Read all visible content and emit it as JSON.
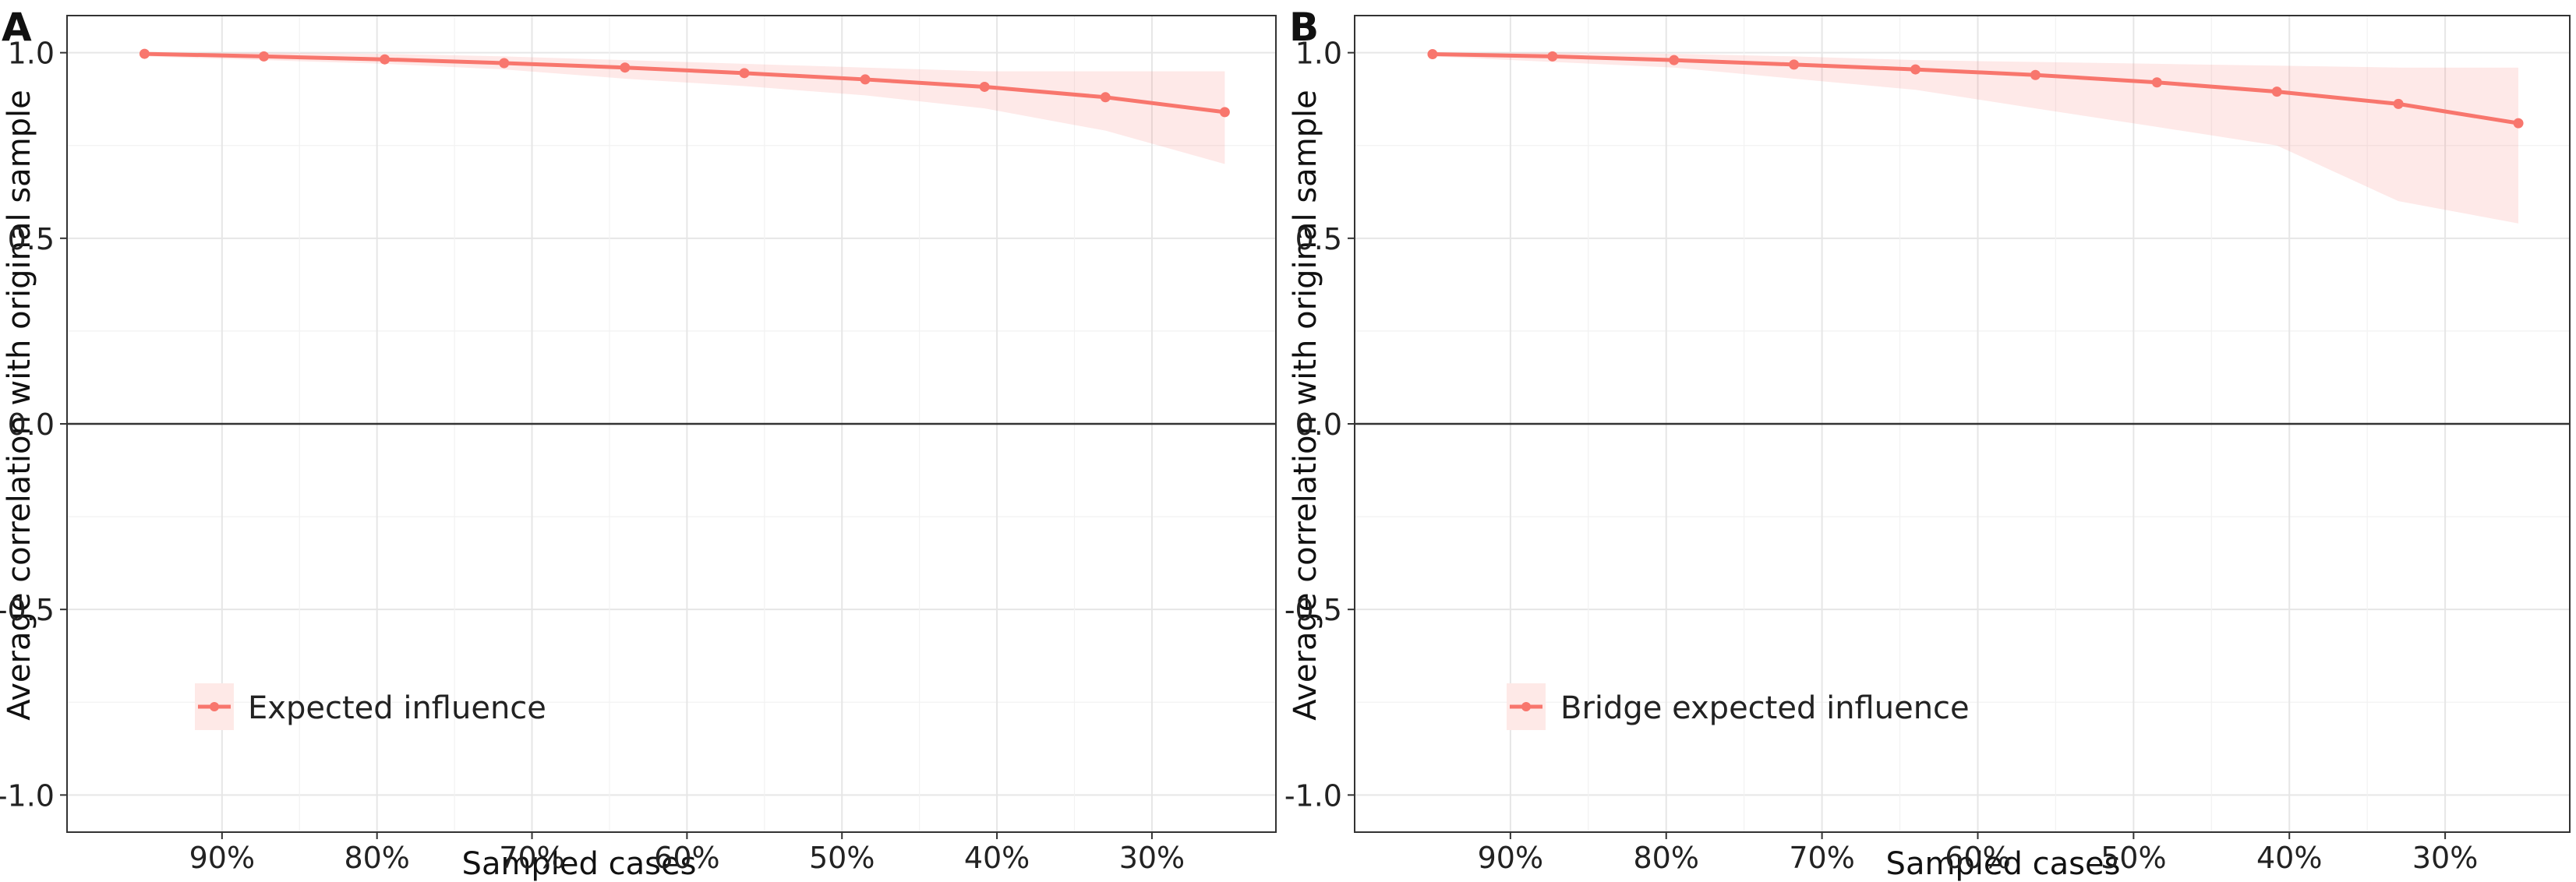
{
  "chart_data": [
    {
      "type": "line",
      "panel_label": "A",
      "xlabel": "Sampled cases",
      "ylabel": "Average correlation with original sample",
      "ylim": [
        -1.1,
        1.1
      ],
      "xlim": [
        0.22,
        1.0
      ],
      "grid": true,
      "y_ticks": [
        1.0,
        0.5,
        0.0,
        -0.5,
        -1.0
      ],
      "y_tick_labels": [
        "1.0",
        "0.5",
        "0.0",
        "-0.5",
        "-1.0"
      ],
      "x_ticks": [
        0.9,
        0.8,
        0.7,
        0.6,
        0.5,
        0.4,
        0.3
      ],
      "x_tick_labels": [
        "90%",
        "80%",
        "70%",
        "60%",
        "50%",
        "40%",
        "30%"
      ],
      "reference_line": 0.0,
      "legend_position": "bottom-left",
      "color": "#F8766D",
      "series": [
        {
          "name": "Expected influence",
          "x": [
            0.95,
            0.873,
            0.795,
            0.718,
            0.64,
            0.563,
            0.485,
            0.408,
            0.33,
            0.253
          ],
          "values": [
            0.997,
            0.99,
            0.982,
            0.972,
            0.96,
            0.945,
            0.928,
            0.908,
            0.88,
            0.84
          ],
          "band_lower": [
            0.99,
            0.98,
            0.97,
            0.955,
            0.93,
            0.91,
            0.885,
            0.85,
            0.79,
            0.7
          ],
          "band_upper": [
            1.0,
            1.0,
            0.997,
            0.99,
            0.98,
            0.97,
            0.96,
            0.95,
            0.95,
            0.95
          ]
        }
      ]
    },
    {
      "type": "line",
      "panel_label": "B",
      "xlabel": "Sampled cases",
      "ylabel": "Average correlation with original sample",
      "ylim": [
        -1.1,
        1.1
      ],
      "xlim": [
        0.22,
        1.0
      ],
      "grid": true,
      "y_ticks": [
        1.0,
        0.5,
        0.0,
        -0.5,
        -1.0
      ],
      "y_tick_labels": [
        "1.0",
        "0.5",
        "0.0",
        "-0.5",
        "-1.0"
      ],
      "x_ticks": [
        0.9,
        0.8,
        0.7,
        0.6,
        0.5,
        0.4,
        0.3
      ],
      "x_tick_labels": [
        "90%",
        "80%",
        "70%",
        "60%",
        "50%",
        "40%",
        "30%"
      ],
      "reference_line": 0.0,
      "legend_position": "bottom-left",
      "color": "#F8766D",
      "series": [
        {
          "name": "Bridge expected influence",
          "x": [
            0.95,
            0.873,
            0.795,
            0.718,
            0.64,
            0.563,
            0.485,
            0.408,
            0.33,
            0.253
          ],
          "values": [
            0.996,
            0.99,
            0.98,
            0.968,
            0.955,
            0.94,
            0.92,
            0.895,
            0.862,
            0.81
          ],
          "band_lower": [
            0.99,
            0.975,
            0.96,
            0.93,
            0.9,
            0.85,
            0.8,
            0.75,
            0.6,
            0.54
          ],
          "band_upper": [
            1.0,
            1.0,
            0.997,
            0.99,
            0.98,
            0.975,
            0.97,
            0.965,
            0.96,
            0.96
          ]
        }
      ]
    }
  ]
}
